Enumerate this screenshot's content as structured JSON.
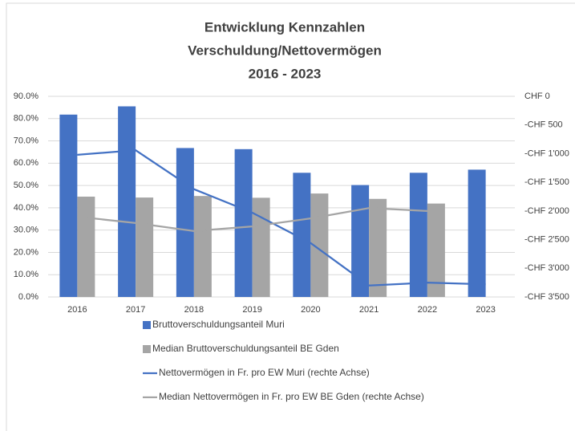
{
  "chart_data": {
    "type": "bar_line",
    "title": [
      "Entwicklung Kennzahlen",
      "Verschuldung/Nettovermögen",
      "2016 - 2023"
    ],
    "categories": [
      "2016",
      "2017",
      "2018",
      "2019",
      "2020",
      "2021",
      "2022",
      "2023"
    ],
    "series": [
      {
        "name": "Bruttoverschuldungsanteil Muri",
        "type": "bar",
        "color": "#4472c4",
        "values": [
          81.8,
          85.5,
          66.8,
          66.3,
          55.7,
          50.2,
          55.7,
          57.1
        ]
      },
      {
        "name": "Median Bruttoverschuldungsanteil BE Gden",
        "type": "bar",
        "color": "#a5a5a5",
        "values": [
          45.0,
          44.6,
          45.3,
          44.5,
          46.4,
          44.0,
          41.9,
          null
        ]
      },
      {
        "name": "Nettovermögen in Fr. pro EW Muri (rechte Achse)",
        "type": "line",
        "axis": "y2",
        "color": "#4472c4",
        "values": [
          -1020,
          -940,
          -1620,
          -2030,
          -2560,
          -3300,
          -3250,
          -3280
        ]
      },
      {
        "name": "Median Nettovermögen in Fr. pro EW BE Gden (rechte Achse)",
        "type": "line",
        "axis": "y2",
        "color": "#a5a5a5",
        "values": [
          -2100,
          -2210,
          -2350,
          -2270,
          -2130,
          -1950,
          -2000,
          null
        ]
      }
    ],
    "ylim": [
      0,
      90
    ],
    "yticks": [
      {
        "value": 0,
        "label": "0.0%"
      },
      {
        "value": 10,
        "label": "10.0%"
      },
      {
        "value": 20,
        "label": "20.0%"
      },
      {
        "value": 30,
        "label": "30.0%"
      },
      {
        "value": 40,
        "label": "40.0%"
      },
      {
        "value": 50,
        "label": "50.0%"
      },
      {
        "value": 60,
        "label": "60.0%"
      },
      {
        "value": 70,
        "label": "70.0%"
      },
      {
        "value": 80,
        "label": "80.0%"
      },
      {
        "value": 90,
        "label": "90.0%"
      }
    ],
    "y2lim": [
      -3500,
      0
    ],
    "y2ticks": [
      {
        "value": 0,
        "label": "CHF 0"
      },
      {
        "value": -500,
        "label": "-CHF 500"
      },
      {
        "value": -1000,
        "label": "-CHF 1'000"
      },
      {
        "value": -1500,
        "label": "-CHF 1'500"
      },
      {
        "value": -2000,
        "label": "-CHF 2'000"
      },
      {
        "value": -2500,
        "label": "-CHF 2'500"
      },
      {
        "value": -3000,
        "label": "-CHF 3'000"
      },
      {
        "value": -3500,
        "label": "-CHF 3'500"
      }
    ],
    "grid": true
  }
}
